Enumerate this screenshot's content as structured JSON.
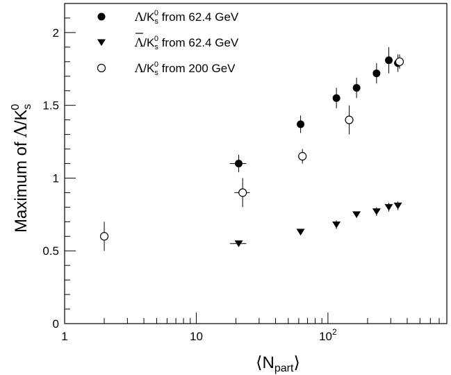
{
  "chart_data": {
    "type": "scatter",
    "x_scale": "log",
    "xlim": [
      1,
      800
    ],
    "ylim": [
      0,
      2.2
    ],
    "grid": false,
    "legend_position": "top-left",
    "xlabel": {
      "main": "N",
      "sub": "part",
      "open": "⟨",
      "close": "⟩"
    },
    "ylabel": {
      "prefix": "Maximum of ",
      "lambda": "Λ",
      "slash": "/K",
      "sup": "0",
      "sub": "s"
    },
    "x_ticks": [
      {
        "value": 1,
        "label": "1"
      },
      {
        "value": 10,
        "label": "10"
      },
      {
        "value": 100,
        "label": "10",
        "sup": "2"
      }
    ],
    "y_ticks": [
      {
        "value": 0,
        "label": "0"
      },
      {
        "value": 0.5,
        "label": "0.5"
      },
      {
        "value": 1,
        "label": "1"
      },
      {
        "value": 1.5,
        "label": "1.5"
      },
      {
        "value": 2,
        "label": "2"
      }
    ],
    "series": [
      {
        "name": "Λ/K0s from 62.4 GeV",
        "legend": {
          "particle": "Λ",
          "bar": false,
          "rest": " from 62.4 GeV"
        },
        "marker": "filled-circle",
        "color": "#000000",
        "points": [
          {
            "x": 21,
            "y": 1.1,
            "yerr": 0.06,
            "xerr_lo": 3,
            "xerr_hi": 3
          },
          {
            "x": 62,
            "y": 1.37,
            "yerr": 0.06
          },
          {
            "x": 116,
            "y": 1.55,
            "yerr": 0.07
          },
          {
            "x": 165,
            "y": 1.62,
            "yerr": 0.07
          },
          {
            "x": 234,
            "y": 1.72,
            "yerr": 0.07
          },
          {
            "x": 290,
            "y": 1.81,
            "yerr": 0.09
          },
          {
            "x": 340,
            "y": 1.79,
            "yerr": 0.06
          }
        ]
      },
      {
        "name": "Λ̄/K0s from 62.4 GeV",
        "legend": {
          "particle": "Λ",
          "bar": true,
          "rest": " from 62.4 GeV"
        },
        "marker": "filled-triangle-down",
        "color": "#000000",
        "points": [
          {
            "x": 21,
            "y": 0.55,
            "yerr": 0.02,
            "xerr_lo": 3,
            "xerr_hi": 3
          },
          {
            "x": 62,
            "y": 0.63,
            "yerr": 0.02
          },
          {
            "x": 116,
            "y": 0.68,
            "yerr": 0.03
          },
          {
            "x": 165,
            "y": 0.75,
            "yerr": 0.02
          },
          {
            "x": 234,
            "y": 0.77,
            "yerr": 0.03
          },
          {
            "x": 290,
            "y": 0.8,
            "yerr": 0.03
          },
          {
            "x": 340,
            "y": 0.81,
            "yerr": 0.03
          }
        ]
      },
      {
        "name": "Λ/K0s from 200 GeV",
        "legend": {
          "particle": "Λ",
          "bar": false,
          "rest": " from 200 GeV"
        },
        "marker": "open-circle",
        "color": "#000000",
        "points": [
          {
            "x": 2,
            "y": 0.6,
            "yerr": 0.1
          },
          {
            "x": 22.5,
            "y": 0.9,
            "yerr": 0.1,
            "xerr_lo": 3,
            "xerr_hi": 3
          },
          {
            "x": 64,
            "y": 1.15,
            "yerr": 0.05
          },
          {
            "x": 145,
            "y": 1.4,
            "yerr": 0.1
          },
          {
            "x": 350,
            "y": 1.8,
            "yerr": 0.05
          }
        ]
      }
    ]
  }
}
